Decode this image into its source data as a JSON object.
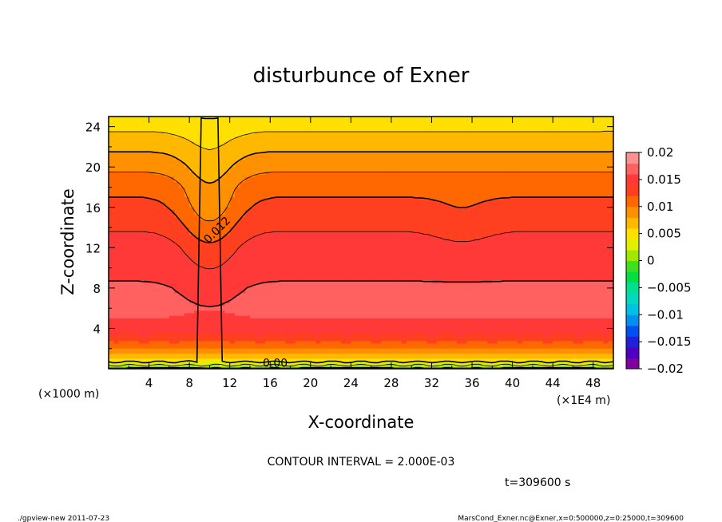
{
  "chart_data": {
    "type": "heatmap",
    "title": "disturbunce of Exner",
    "xlabel": "X-coordinate",
    "ylabel": "Z-coordinate",
    "x_unit_left": "(×1000 m)",
    "x_unit_right": "(×1E4 m)",
    "xlim": [
      0,
      50
    ],
    "ylim": [
      0,
      25
    ],
    "x_ticks": [
      4,
      8,
      12,
      16,
      20,
      24,
      28,
      32,
      36,
      40,
      44,
      48
    ],
    "y_ticks": [
      4,
      8,
      12,
      16,
      20,
      24
    ],
    "contour_interval_text": "CONTOUR INTERVAL = 2.000E-03",
    "contour_labels": [
      {
        "text": "0.012",
        "x": 11,
        "y": 13.5
      },
      {
        "text": "0.00",
        "x": 16.5,
        "y": 0.2
      }
    ],
    "time_label": "t=309600 s",
    "colorbar": {
      "levels": [
        -0.02,
        -0.015,
        -0.01,
        -0.005,
        0,
        0.005,
        0.01,
        0.015,
        0.02
      ],
      "tick_labels": [
        "0.02",
        "0.015",
        "0.01",
        "0.005",
        "0",
        "−0.005",
        "−0.01",
        "−0.015",
        "−0.02"
      ],
      "colors": [
        "#8000a0",
        "#5000c0",
        "#2020d8",
        "#0050f0",
        "#0090f0",
        "#00c0e8",
        "#00d8c0",
        "#00e090",
        "#00e040",
        "#40e020",
        "#a0e800",
        "#e0f000",
        "#ffe000",
        "#ffb800",
        "#ff9000",
        "#ff6800",
        "#ff4020",
        "#ff3838",
        "#ff6060",
        "#ff9090"
      ]
    },
    "z_profile": [
      {
        "z": 0,
        "value": 0.0
      },
      {
        "z": 0.5,
        "value": 0.003
      },
      {
        "z": 1.0,
        "value": 0.006
      },
      {
        "z": 2.0,
        "value": 0.01
      },
      {
        "z": 3.0,
        "value": 0.013
      },
      {
        "z": 4.0,
        "value": 0.0155
      },
      {
        "z": 6.0,
        "value": 0.0165
      },
      {
        "z": 8.0,
        "value": 0.0162
      },
      {
        "z": 12.0,
        "value": 0.015
      },
      {
        "z": 16.0,
        "value": 0.0125
      },
      {
        "z": 18.0,
        "value": 0.0115
      },
      {
        "z": 20.0,
        "value": 0.0095
      },
      {
        "z": 22.0,
        "value": 0.0075
      },
      {
        "z": 23.0,
        "value": 0.0065
      },
      {
        "z": 25.0,
        "value": 0.0045
      }
    ]
  },
  "footer": {
    "left": "./gpview-new   2011-07-23",
    "right": "MarsCond_Exner.nc@Exner,x=0:500000,z=0:25000,t=309600"
  }
}
